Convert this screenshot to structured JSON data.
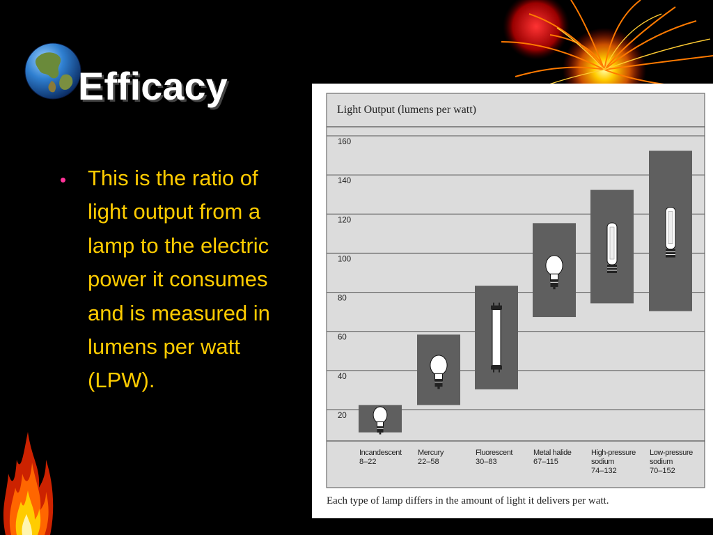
{
  "slide": {
    "title": "Efficacy",
    "bullet": "This is the ratio of light output from a lamp to the electric power it consumes and is measured in lumens per watt (LPW).",
    "colors": {
      "background": "#000000",
      "title": "#ffffff",
      "bullet_text": "#ffcc00",
      "bullet_marker": "#ff3399"
    },
    "decorations": [
      "globe-icon",
      "sunburst-graphic",
      "flame-graphic"
    ]
  },
  "chart_data": {
    "type": "bar",
    "subtype": "floating-range",
    "title": "Light Output (lumens per watt)",
    "caption": "Each type of lamp differs in the amount of light it delivers per watt.",
    "yticks": [
      "20",
      "40",
      "60",
      "80",
      "100",
      "120",
      "140",
      "160"
    ],
    "ylim": [
      10,
      160
    ],
    "grid": true,
    "colors": {
      "panel": "#dcdcdc",
      "bar": "#5f5f5f",
      "lamp": "#ffffff"
    },
    "categories": [
      {
        "name": "Incandescent",
        "name2": "",
        "range_label": "8–22",
        "low": 8,
        "high": 22,
        "lamp": "incandescent-bulb-icon"
      },
      {
        "name": "Mercury",
        "name2": "",
        "range_label": "22–58",
        "low": 22,
        "high": 58,
        "lamp": "mercury-bulb-icon"
      },
      {
        "name": "Fluorescent",
        "name2": "",
        "range_label": "30–83",
        "low": 30,
        "high": 83,
        "lamp": "fluorescent-tube-icon"
      },
      {
        "name": "Metal halide",
        "name2": "",
        "range_label": "67–115",
        "low": 67,
        "high": 115,
        "lamp": "metal-halide-bulb-icon"
      },
      {
        "name": "High-pressure",
        "name2": "sodium",
        "range_label": "74–132",
        "low": 74,
        "high": 132,
        "lamp": "hps-tube-icon"
      },
      {
        "name": "Low-pressure",
        "name2": "sodium",
        "range_label": "70–152",
        "low": 70,
        "high": 152,
        "lamp": "lps-tube-icon"
      }
    ]
  }
}
